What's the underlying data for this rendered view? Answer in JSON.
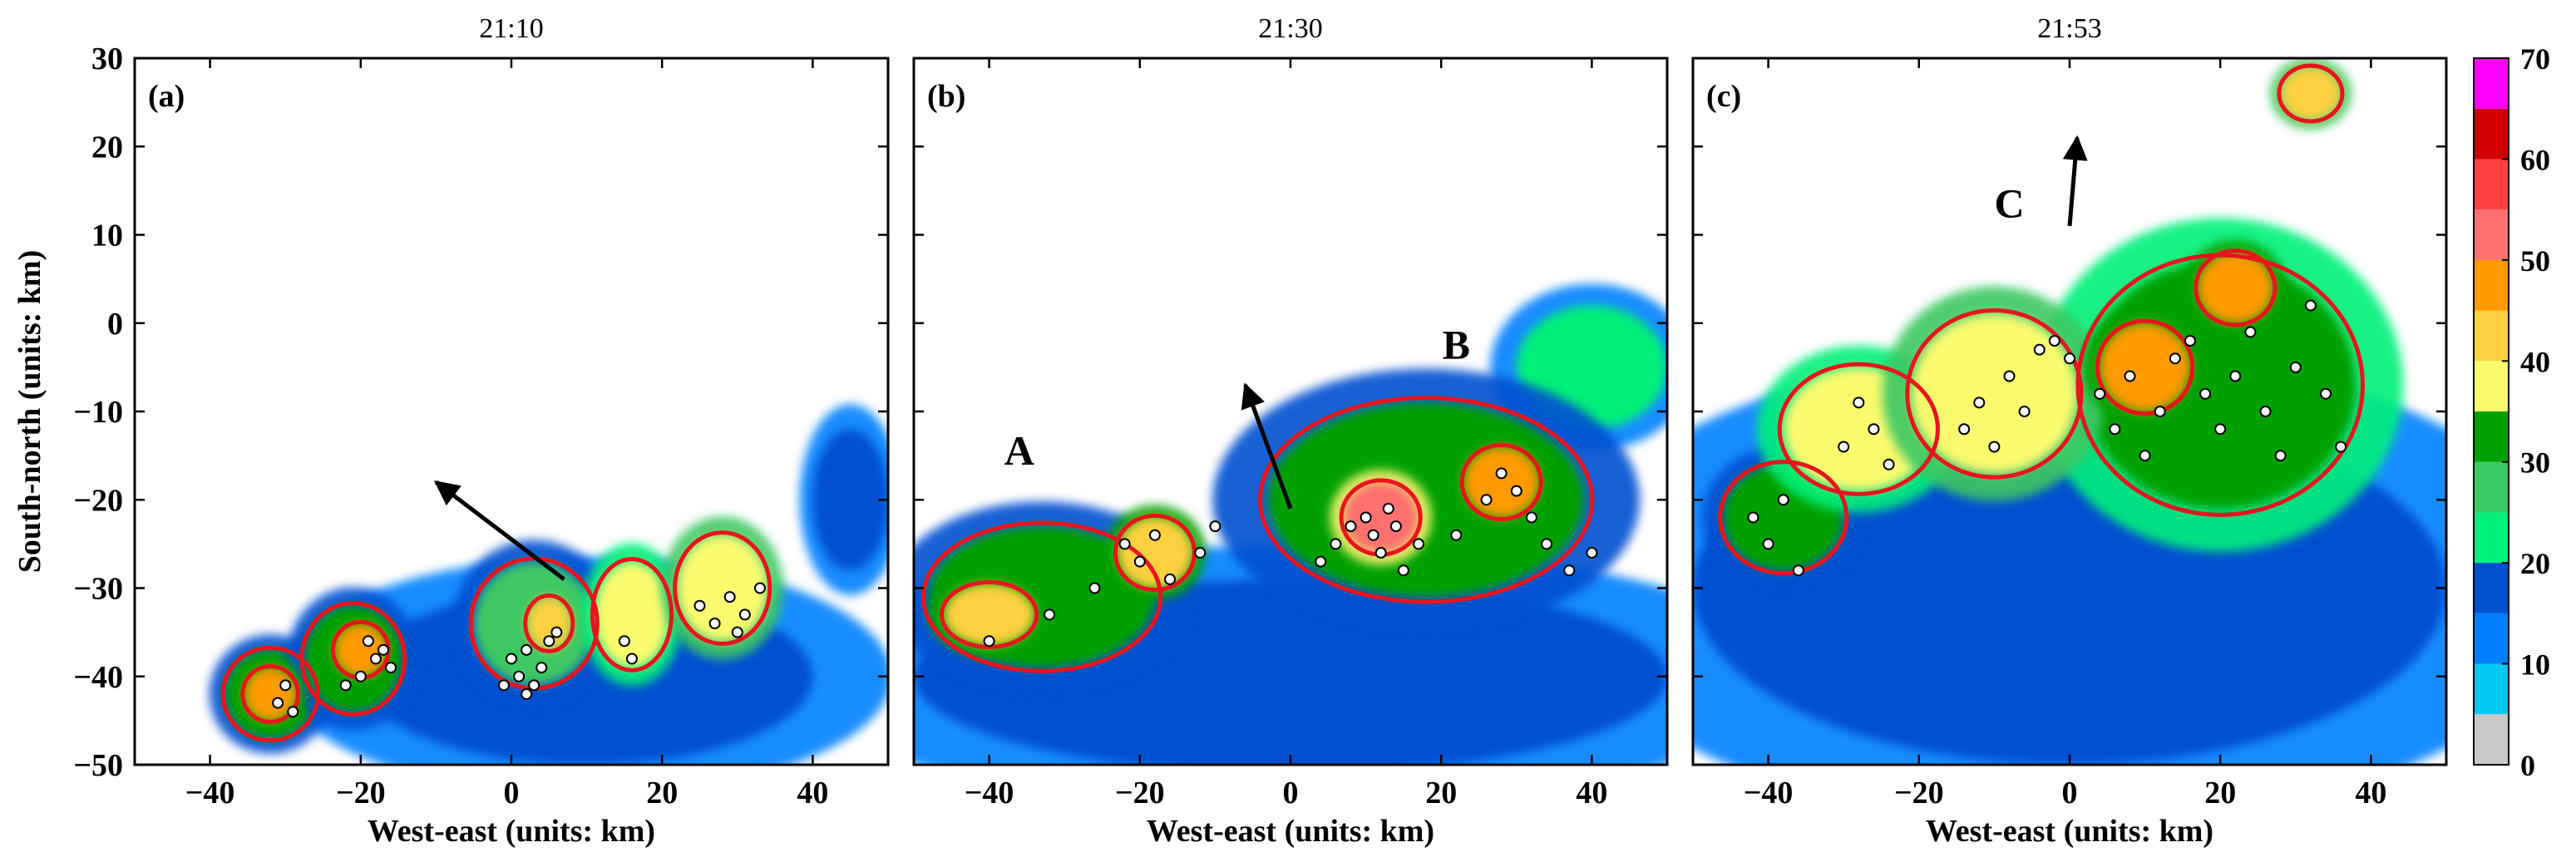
{
  "chart_data": [
    {
      "type": "heatmap",
      "panel": "(a)",
      "title": "21:10",
      "xlabel": "West-east (units: km)",
      "ylabel": "South-north (units: km)",
      "xlim": [
        -50,
        50
      ],
      "ylim": [
        -50,
        30
      ],
      "xticks": [
        -40,
        -20,
        0,
        20,
        40
      ],
      "yticks": [
        -50,
        -40,
        -30,
        -20,
        -10,
        0,
        10,
        20,
        30
      ],
      "arrow": {
        "from": [
          7,
          -29
        ],
        "to": [
          -10,
          -18
        ]
      },
      "annotations": [],
      "cells": [
        {
          "x": -32,
          "y": -42,
          "w": 12,
          "h": 10,
          "dbz": 30
        },
        {
          "x": -32,
          "y": -42,
          "w": 7,
          "h": 6,
          "dbz": 45
        },
        {
          "x": -21,
          "y": -38,
          "w": 13,
          "h": 12,
          "dbz": 30
        },
        {
          "x": -20,
          "y": -37,
          "w": 7,
          "h": 6,
          "dbz": 45
        },
        {
          "x": 3,
          "y": -34,
          "w": 16,
          "h": 14,
          "dbz": 28
        },
        {
          "x": 5,
          "y": -34,
          "w": 6,
          "h": 6,
          "dbz": 40
        },
        {
          "x": 16,
          "y": -33,
          "w": 10,
          "h": 12,
          "dbz": 35
        },
        {
          "x": 28,
          "y": -30,
          "w": 12,
          "h": 12,
          "dbz": 38
        },
        {
          "x": 10,
          "y": -40,
          "w": 60,
          "h": 20,
          "dbz": 18
        },
        {
          "x": 45,
          "y": -20,
          "w": 10,
          "h": 16,
          "dbz": 18
        }
      ],
      "flashes": [
        {
          "x": -31,
          "y": -43
        },
        {
          "x": -30,
          "y": -41
        },
        {
          "x": -29,
          "y": -44
        },
        {
          "x": -22,
          "y": -41
        },
        {
          "x": -20,
          "y": -40
        },
        {
          "x": -18,
          "y": -38
        },
        {
          "x": -17,
          "y": -37
        },
        {
          "x": -16,
          "y": -39
        },
        {
          "x": -19,
          "y": -36
        },
        {
          "x": 0,
          "y": -38
        },
        {
          "x": 1,
          "y": -40
        },
        {
          "x": 2,
          "y": -37
        },
        {
          "x": 3,
          "y": -41
        },
        {
          "x": 4,
          "y": -39
        },
        {
          "x": 5,
          "y": -36
        },
        {
          "x": 6,
          "y": -35
        },
        {
          "x": -1,
          "y": -41
        },
        {
          "x": 2,
          "y": -42
        },
        {
          "x": 15,
          "y": -36
        },
        {
          "x": 16,
          "y": -38
        },
        {
          "x": 25,
          "y": -32
        },
        {
          "x": 27,
          "y": -34
        },
        {
          "x": 29,
          "y": -31
        },
        {
          "x": 30,
          "y": -35
        },
        {
          "x": 31,
          "y": -33
        },
        {
          "x": 33,
          "y": -30
        }
      ]
    },
    {
      "type": "heatmap",
      "panel": "(b)",
      "title": "21:30",
      "xlabel": "West-east (units: km)",
      "ylabel": "",
      "xlim": [
        -50,
        50
      ],
      "ylim": [
        -50,
        30
      ],
      "xticks": [
        -40,
        -20,
        0,
        20,
        40
      ],
      "yticks": [
        -50,
        -40,
        -30,
        -20,
        -10,
        0,
        10,
        20,
        30
      ],
      "arrow": {
        "from": [
          0,
          -21
        ],
        "to": [
          -6,
          -7
        ]
      },
      "annotations": [
        {
          "text": "A",
          "x": -36,
          "y": -16
        },
        {
          "text": "B",
          "x": 22,
          "y": -4
        }
      ],
      "cells": [
        {
          "x": -33,
          "y": -31,
          "w": 30,
          "h": 16,
          "dbz": 30
        },
        {
          "x": -40,
          "y": -33,
          "w": 12,
          "h": 7,
          "dbz": 42
        },
        {
          "x": -18,
          "y": -26,
          "w": 10,
          "h": 8,
          "dbz": 42
        },
        {
          "x": 18,
          "y": -20,
          "w": 42,
          "h": 22,
          "dbz": 30
        },
        {
          "x": 12,
          "y": -22,
          "w": 10,
          "h": 8,
          "dbz": 50
        },
        {
          "x": 28,
          "y": -18,
          "w": 10,
          "h": 8,
          "dbz": 45
        },
        {
          "x": 0,
          "y": -40,
          "w": 100,
          "h": 22,
          "dbz": 18
        },
        {
          "x": 40,
          "y": -5,
          "w": 20,
          "h": 14,
          "dbz": 20
        }
      ],
      "flashes": [
        {
          "x": -40,
          "y": -36
        },
        {
          "x": -32,
          "y": -33
        },
        {
          "x": -26,
          "y": -30
        },
        {
          "x": -22,
          "y": -25
        },
        {
          "x": -20,
          "y": -27
        },
        {
          "x": -18,
          "y": -24
        },
        {
          "x": -16,
          "y": -29
        },
        {
          "x": -12,
          "y": -26
        },
        {
          "x": -10,
          "y": -23
        },
        {
          "x": 4,
          "y": -27
        },
        {
          "x": 6,
          "y": -25
        },
        {
          "x": 8,
          "y": -23
        },
        {
          "x": 10,
          "y": -22
        },
        {
          "x": 11,
          "y": -24
        },
        {
          "x": 12,
          "y": -26
        },
        {
          "x": 13,
          "y": -21
        },
        {
          "x": 14,
          "y": -23
        },
        {
          "x": 15,
          "y": -28
        },
        {
          "x": 17,
          "y": -25
        },
        {
          "x": 22,
          "y": -24
        },
        {
          "x": 26,
          "y": -20
        },
        {
          "x": 28,
          "y": -17
        },
        {
          "x": 30,
          "y": -19
        },
        {
          "x": 32,
          "y": -22
        },
        {
          "x": 34,
          "y": -25
        },
        {
          "x": 37,
          "y": -28
        },
        {
          "x": 40,
          "y": -26
        }
      ]
    },
    {
      "type": "heatmap",
      "panel": "(c)",
      "title": "21:53",
      "xlabel": "West-east (units: km)",
      "ylabel": "",
      "xlim": [
        -50,
        50
      ],
      "ylim": [
        -50,
        30
      ],
      "xticks": [
        -40,
        -20,
        0,
        20,
        40
      ],
      "yticks": [
        -50,
        -40,
        -30,
        -20,
        -10,
        0,
        10,
        20,
        30
      ],
      "arrow": {
        "from": [
          0,
          11
        ],
        "to": [
          1,
          21
        ]
      },
      "annotations": [
        {
          "text": "C",
          "x": -8,
          "y": 12
        }
      ],
      "cells": [
        {
          "x": -38,
          "y": -22,
          "w": 16,
          "h": 12,
          "dbz": 30
        },
        {
          "x": -28,
          "y": -12,
          "w": 20,
          "h": 14,
          "dbz": 35
        },
        {
          "x": -10,
          "y": -8,
          "w": 22,
          "h": 18,
          "dbz": 38
        },
        {
          "x": 20,
          "y": -7,
          "w": 36,
          "h": 28,
          "dbz": 32
        },
        {
          "x": 10,
          "y": -5,
          "w": 12,
          "h": 10,
          "dbz": 45
        },
        {
          "x": 22,
          "y": 4,
          "w": 10,
          "h": 8,
          "dbz": 45
        },
        {
          "x": 0,
          "y": -30,
          "w": 100,
          "h": 40,
          "dbz": 15
        },
        {
          "x": 32,
          "y": 26,
          "w": 8,
          "h": 6,
          "dbz": 40
        }
      ],
      "flashes": [
        {
          "x": -42,
          "y": -22
        },
        {
          "x": -40,
          "y": -25
        },
        {
          "x": -38,
          "y": -20
        },
        {
          "x": -36,
          "y": -28
        },
        {
          "x": -30,
          "y": -14
        },
        {
          "x": -28,
          "y": -9
        },
        {
          "x": -26,
          "y": -12
        },
        {
          "x": -24,
          "y": -16
        },
        {
          "x": -14,
          "y": -12
        },
        {
          "x": -12,
          "y": -9
        },
        {
          "x": -10,
          "y": -14
        },
        {
          "x": -8,
          "y": -6
        },
        {
          "x": -6,
          "y": -10
        },
        {
          "x": -4,
          "y": -3
        },
        {
          "x": -2,
          "y": -2
        },
        {
          "x": 0,
          "y": -4
        },
        {
          "x": 4,
          "y": -8
        },
        {
          "x": 6,
          "y": -12
        },
        {
          "x": 8,
          "y": -6
        },
        {
          "x": 10,
          "y": -15
        },
        {
          "x": 12,
          "y": -10
        },
        {
          "x": 14,
          "y": -4
        },
        {
          "x": 16,
          "y": -2
        },
        {
          "x": 18,
          "y": -8
        },
        {
          "x": 20,
          "y": -12
        },
        {
          "x": 22,
          "y": -6
        },
        {
          "x": 24,
          "y": -1
        },
        {
          "x": 26,
          "y": -10
        },
        {
          "x": 28,
          "y": -15
        },
        {
          "x": 30,
          "y": -5
        },
        {
          "x": 32,
          "y": 2
        },
        {
          "x": 34,
          "y": -8
        },
        {
          "x": 36,
          "y": -14
        }
      ]
    }
  ],
  "colorbar": {
    "ticks": [
      0,
      10,
      20,
      30,
      40,
      50,
      60,
      70
    ],
    "levels": [
      0,
      5,
      10,
      15,
      20,
      25,
      30,
      35,
      40,
      45,
      50,
      55,
      60,
      65,
      70
    ],
    "colors": [
      "#c8c8c8",
      "#00c8f0",
      "#0080ff",
      "#0050d0",
      "#00f07a",
      "#3cc864",
      "#00a000",
      "#fafa6e",
      "#ffd040",
      "#ff9a00",
      "#ff7070",
      "#ff4040",
      "#d00000",
      "#ff00ff"
    ]
  },
  "colors": {
    "cell_outline": "#e8141e",
    "flash_fill": "#ffffff",
    "flash_stroke": "#000000"
  }
}
